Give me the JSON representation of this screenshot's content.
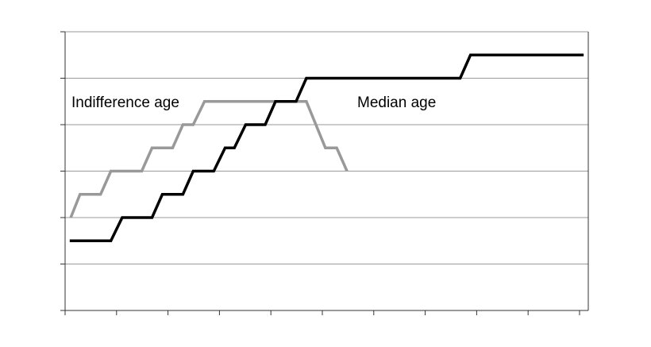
{
  "chart_data": {
    "type": "line",
    "xlim": [
      0,
      10.17
    ],
    "xticks": [
      0,
      1,
      2,
      3,
      4,
      5,
      6,
      7,
      8,
      9,
      10
    ],
    "ylim": [
      0,
      6
    ],
    "yticks": [
      0,
      1,
      2,
      3,
      4,
      5,
      6
    ],
    "grid": true,
    "series": [
      {
        "name": "Indifference age",
        "color": "#999999",
        "x": [
          0.11,
          0.29,
          0.69,
          0.89,
          1.49,
          1.69,
          2.09,
          2.29,
          2.49,
          2.71,
          4.69,
          5.06,
          5.28,
          5.48
        ],
        "values": [
          2,
          2.5,
          2.5,
          3,
          3,
          3.5,
          3.5,
          4,
          4,
          4.5,
          4.5,
          3.5,
          3.5,
          3
        ]
      },
      {
        "name": "Median age",
        "color": "#000000",
        "x": [
          0.09,
          0.89,
          1.11,
          1.69,
          1.89,
          2.29,
          2.49,
          2.89,
          3.11,
          3.29,
          3.51,
          3.89,
          4.09,
          4.49,
          4.69,
          7.68,
          7.88,
          10.08
        ],
        "values": [
          1.5,
          1.5,
          2,
          2,
          2.5,
          2.5,
          3,
          3,
          3.5,
          3.5,
          4,
          4,
          4.5,
          4.5,
          5,
          5,
          5.5,
          5.5
        ]
      }
    ]
  }
}
